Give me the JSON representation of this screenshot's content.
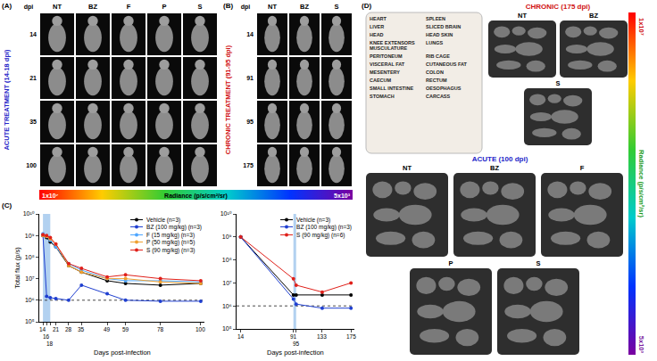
{
  "chart_data": [
    {
      "type": "line",
      "panel": "(C)",
      "x_label": "Days post-infection",
      "y_label": "Total flux (p/s)",
      "log": "y",
      "grid": false,
      "legend": "top right",
      "xlim": [
        12,
        102
      ],
      "xticks": [
        14,
        16,
        18,
        21,
        28,
        35,
        49,
        59,
        78,
        100
      ],
      "ylim": [
        100000,
        10000000000
      ],
      "yticks": [
        {
          "value": 100000,
          "label": "10⁵"
        },
        {
          "value": 1000000,
          "label": "10⁶"
        },
        {
          "value": 10000000,
          "label": "10⁷"
        },
        {
          "value": 100000000,
          "label": "10⁸"
        },
        {
          "value": 1000000000,
          "label": "10⁹"
        },
        {
          "value": 10000000000,
          "label": "10¹⁰"
        }
      ],
      "treatment_period": [
        14,
        18
      ],
      "reference_line": 1000000,
      "x": [
        14,
        16,
        18,
        21,
        28,
        35,
        49,
        59,
        78,
        100
      ],
      "series": [
        {
          "name": "Vehicle (n=3)",
          "color": "#000000",
          "marker": "circle",
          "values": [
            1000000000,
            800000000,
            500000000,
            300000000,
            40000000,
            20000000,
            8000000,
            6000000,
            5000000,
            6000000
          ]
        },
        {
          "name": "BZ (100 mg/kg) (n=3)",
          "color": "#1f3fd0",
          "marker": "circle",
          "values": [
            1000000000,
            1500000,
            1300000,
            1200000,
            1000000,
            5000000,
            2000000,
            1000000,
            900000,
            900000
          ]
        },
        {
          "name": "F (15 mg/kg) (n=3)",
          "color": "#4da6ff",
          "marker": "circle",
          "values": [
            1200000000,
            900000000,
            600000000,
            300000000,
            50000000,
            25000000,
            10000000,
            8000000,
            8000000,
            7000000
          ]
        },
        {
          "name": "P (50 mg/kg) (n=5)",
          "color": "#f0a030",
          "marker": "circle",
          "values": [
            1000000000,
            900000000,
            700000000,
            400000000,
            40000000,
            20000000,
            10000000,
            10000000,
            7000000,
            6000000
          ]
        },
        {
          "name": "S (90 mg/kg) (n=3)",
          "color": "#e0201a",
          "marker": "circle",
          "values": [
            1100000000,
            1000000000,
            800000000,
            400000000,
            50000000,
            30000000,
            12000000,
            15000000,
            10000000,
            8000000
          ]
        }
      ]
    },
    {
      "type": "line",
      "x_label": "Days post-infection",
      "log": "y",
      "grid": false,
      "legend": "top right",
      "xlim": [
        8,
        180
      ],
      "xticks": [
        14,
        91,
        95,
        133,
        175
      ],
      "ylim": [
        100000,
        10000000000
      ],
      "yticks": [
        {
          "value": 100000,
          "label": "10⁵"
        },
        {
          "value": 1000000,
          "label": "10⁶"
        },
        {
          "value": 10000000,
          "label": "10⁷"
        },
        {
          "value": 100000000,
          "label": "10⁸"
        },
        {
          "value": 1000000000,
          "label": "10⁹"
        },
        {
          "value": 10000000000,
          "label": "10¹⁰"
        }
      ],
      "treatment_period": [
        91,
        95
      ],
      "reference_line": 1000000,
      "x": [
        14,
        91,
        95,
        133,
        175
      ],
      "series": [
        {
          "name": "Vehicle (n=3)",
          "color": "#000000",
          "marker": "circle",
          "values": [
            1000000000,
            3000000,
            3000000,
            3000000,
            3000000
          ]
        },
        {
          "name": "BZ (100 mg/kg) (n=3)",
          "color": "#1f3fd0",
          "marker": "circle",
          "values": [
            1000000000,
            2000000,
            1200000,
            800000,
            800000
          ]
        },
        {
          "name": "S (90 mg/kg) (n=6)",
          "color": "#e0201a",
          "marker": "circle",
          "values": [
            1000000000,
            15000000,
            8000000,
            4000000,
            10000000
          ]
        }
      ]
    }
  ],
  "acute_imaging": {
    "panel": "(A)",
    "title": "ACUTE TREATMENT (14-18 dpi)",
    "row_header": "dpi",
    "columns": [
      "NT",
      "BZ",
      "F",
      "P",
      "S"
    ],
    "rows": [
      14,
      21,
      35,
      100
    ]
  },
  "chronic_imaging": {
    "panel": "(B)",
    "title": "CHRONIC TREATMENT (91-95 dpi)",
    "row_header": "dpi",
    "columns": [
      "NT",
      "BZ",
      "S"
    ],
    "rows": [
      14,
      91,
      95,
      175
    ]
  },
  "radiance_scale": {
    "title": "Radiance (p/s/cm²/sr)",
    "max_label": "1x10⁷",
    "min_label": "5x10³"
  },
  "necropsy_imaging": {
    "panel": "(D)",
    "organs": [
      "HEART",
      "SPLEEN",
      "LIVER",
      "SLICED BRAIN",
      "HEAD",
      "HEAD SKIN",
      "KNEE EXTENSORS MUSCULATURE",
      "LUNGS",
      "PERITONEUM",
      "RIB CAGE",
      "VISCERAL FAT",
      "CUTANEOUS FAT",
      "MESENTERY",
      "COLON",
      "CAECUM",
      "RECTUM",
      "SMALL INTESTINE",
      "OESOPHAGUS",
      "STOMACH",
      "CARCASS"
    ],
    "chronic": {
      "title": "CHRONIC (175 dpi)",
      "groups": [
        "NT",
        "BZ",
        "S"
      ]
    },
    "acute": {
      "title": "ACUTE (100 dpi)",
      "groups": [
        "NT",
        "BZ",
        "F",
        "P",
        "S"
      ]
    }
  }
}
